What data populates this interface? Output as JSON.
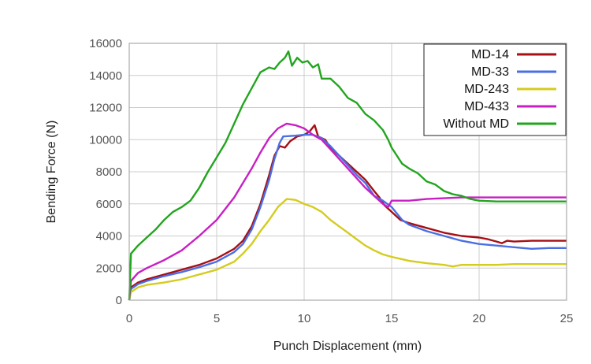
{
  "chart_data": {
    "type": "line",
    "title": "",
    "xlabel": "Punch Displacement (mm)",
    "ylabel": "Bending Force (N)",
    "xlim": [
      0,
      25
    ],
    "ylim": [
      0,
      16000
    ],
    "xticks": [
      0,
      5,
      10,
      15,
      20,
      25
    ],
    "yticks": [
      0,
      2000,
      4000,
      6000,
      8000,
      10000,
      12000,
      14000,
      16000
    ],
    "grid": true,
    "legend_position": "top-right",
    "series": [
      {
        "name": "MD-14",
        "color": "#a50f15",
        "points": [
          [
            0,
            0
          ],
          [
            0.1,
            800
          ],
          [
            0.5,
            1100
          ],
          [
            1,
            1300
          ],
          [
            2,
            1600
          ],
          [
            3,
            1900
          ],
          [
            4,
            2200
          ],
          [
            5,
            2600
          ],
          [
            6,
            3200
          ],
          [
            6.5,
            3700
          ],
          [
            7,
            4600
          ],
          [
            7.5,
            6000
          ],
          [
            8,
            7800
          ],
          [
            8.3,
            9000
          ],
          [
            8.6,
            9600
          ],
          [
            8.9,
            9500
          ],
          [
            9.2,
            9900
          ],
          [
            9.6,
            10200
          ],
          [
            10,
            10300
          ],
          [
            10.3,
            10500
          ],
          [
            10.6,
            10900
          ],
          [
            10.8,
            10200
          ],
          [
            11.2,
            10000
          ],
          [
            11.5,
            9500
          ],
          [
            12,
            9000
          ],
          [
            12.5,
            8500
          ],
          [
            13,
            8000
          ],
          [
            13.5,
            7500
          ],
          [
            14,
            6800
          ],
          [
            14.3,
            6400
          ],
          [
            14.6,
            5900
          ],
          [
            15,
            5500
          ],
          [
            15.5,
            5000
          ],
          [
            16,
            4800
          ],
          [
            17,
            4500
          ],
          [
            18,
            4200
          ],
          [
            19,
            4000
          ],
          [
            20,
            3900
          ],
          [
            20.5,
            3800
          ],
          [
            21,
            3650
          ],
          [
            21.3,
            3550
          ],
          [
            21.6,
            3700
          ],
          [
            22,
            3650
          ],
          [
            23,
            3700
          ],
          [
            24,
            3700
          ],
          [
            25,
            3700
          ]
        ]
      },
      {
        "name": "MD-33",
        "color": "#4a6fe3",
        "points": [
          [
            0,
            0
          ],
          [
            0.1,
            700
          ],
          [
            0.5,
            1000
          ],
          [
            1,
            1200
          ],
          [
            2,
            1500
          ],
          [
            3,
            1750
          ],
          [
            4,
            2050
          ],
          [
            5,
            2400
          ],
          [
            6,
            3000
          ],
          [
            6.5,
            3500
          ],
          [
            7,
            4400
          ],
          [
            7.5,
            5800
          ],
          [
            8,
            7500
          ],
          [
            8.3,
            8800
          ],
          [
            8.6,
            9800
          ],
          [
            8.8,
            10200
          ],
          [
            9.5,
            10250
          ],
          [
            10,
            10300
          ],
          [
            10.5,
            10300
          ],
          [
            11,
            10100
          ],
          [
            11.5,
            9600
          ],
          [
            12,
            9000
          ],
          [
            12.5,
            8400
          ],
          [
            13,
            7800
          ],
          [
            13.5,
            7300
          ],
          [
            14,
            6500
          ],
          [
            14.5,
            6200
          ],
          [
            15,
            5800
          ],
          [
            15.3,
            5400
          ],
          [
            15.6,
            5000
          ],
          [
            16,
            4700
          ],
          [
            17,
            4300
          ],
          [
            18,
            4000
          ],
          [
            19,
            3700
          ],
          [
            20,
            3500
          ],
          [
            21,
            3400
          ],
          [
            22,
            3300
          ],
          [
            23,
            3200
          ],
          [
            24,
            3250
          ],
          [
            25,
            3250
          ]
        ]
      },
      {
        "name": "MD-243",
        "color": "#d4cc1f",
        "points": [
          [
            0,
            0
          ],
          [
            0.1,
            500
          ],
          [
            0.5,
            800
          ],
          [
            1,
            950
          ],
          [
            2,
            1100
          ],
          [
            3,
            1300
          ],
          [
            4,
            1600
          ],
          [
            5,
            1900
          ],
          [
            6,
            2400
          ],
          [
            6.5,
            2900
          ],
          [
            7,
            3500
          ],
          [
            7.5,
            4300
          ],
          [
            8,
            5000
          ],
          [
            8.5,
            5800
          ],
          [
            9,
            6300
          ],
          [
            9.5,
            6250
          ],
          [
            10,
            6000
          ],
          [
            10.5,
            5800
          ],
          [
            11,
            5500
          ],
          [
            11.5,
            5000
          ],
          [
            12,
            4600
          ],
          [
            12.5,
            4200
          ],
          [
            13,
            3800
          ],
          [
            13.5,
            3400
          ],
          [
            14,
            3100
          ],
          [
            14.5,
            2850
          ],
          [
            15,
            2700
          ],
          [
            16,
            2450
          ],
          [
            17,
            2300
          ],
          [
            18,
            2200
          ],
          [
            18.5,
            2100
          ],
          [
            19,
            2200
          ],
          [
            20,
            2200
          ],
          [
            21,
            2200
          ],
          [
            22,
            2250
          ],
          [
            23,
            2250
          ],
          [
            24,
            2250
          ],
          [
            25,
            2250
          ]
        ]
      },
      {
        "name": "MD-433",
        "color": "#c81fc4",
        "points": [
          [
            0,
            0
          ],
          [
            0.1,
            1200
          ],
          [
            0.5,
            1700
          ],
          [
            1,
            2000
          ],
          [
            2,
            2500
          ],
          [
            2.5,
            2800
          ],
          [
            3,
            3100
          ],
          [
            4,
            4000
          ],
          [
            5,
            5000
          ],
          [
            6,
            6400
          ],
          [
            7,
            8200
          ],
          [
            7.5,
            9200
          ],
          [
            8,
            10100
          ],
          [
            8.5,
            10700
          ],
          [
            9,
            11000
          ],
          [
            9.5,
            10900
          ],
          [
            10,
            10700
          ],
          [
            10.5,
            10300
          ],
          [
            11,
            10000
          ],
          [
            11.5,
            9400
          ],
          [
            12,
            8800
          ],
          [
            12.5,
            8200
          ],
          [
            13,
            7600
          ],
          [
            13.5,
            7000
          ],
          [
            14,
            6500
          ],
          [
            14.5,
            6000
          ],
          [
            14.8,
            5800
          ],
          [
            15,
            6200
          ],
          [
            16,
            6200
          ],
          [
            17,
            6300
          ],
          [
            18,
            6350
          ],
          [
            19,
            6400
          ],
          [
            20,
            6400
          ],
          [
            21,
            6400
          ],
          [
            22,
            6400
          ],
          [
            23,
            6400
          ],
          [
            24,
            6400
          ],
          [
            25,
            6400
          ]
        ]
      },
      {
        "name": "Without MD",
        "color": "#22a51e",
        "points": [
          [
            0,
            0
          ],
          [
            0.1,
            2900
          ],
          [
            0.5,
            3400
          ],
          [
            1,
            3900
          ],
          [
            1.5,
            4400
          ],
          [
            2,
            5000
          ],
          [
            2.5,
            5500
          ],
          [
            3,
            5800
          ],
          [
            3.5,
            6200
          ],
          [
            4,
            7000
          ],
          [
            4.5,
            8000
          ],
          [
            5,
            8900
          ],
          [
            5.5,
            9800
          ],
          [
            6,
            11000
          ],
          [
            6.5,
            12200
          ],
          [
            7,
            13200
          ],
          [
            7.5,
            14200
          ],
          [
            8,
            14500
          ],
          [
            8.3,
            14400
          ],
          [
            8.6,
            14800
          ],
          [
            8.9,
            15100
          ],
          [
            9.1,
            15500
          ],
          [
            9.3,
            14600
          ],
          [
            9.6,
            15100
          ],
          [
            9.9,
            14800
          ],
          [
            10.2,
            14900
          ],
          [
            10.5,
            14500
          ],
          [
            10.8,
            14700
          ],
          [
            11,
            13800
          ],
          [
            11.5,
            13800
          ],
          [
            12,
            13300
          ],
          [
            12.5,
            12600
          ],
          [
            13,
            12300
          ],
          [
            13.5,
            11600
          ],
          [
            14,
            11200
          ],
          [
            14.5,
            10600
          ],
          [
            14.8,
            10000
          ],
          [
            15,
            9500
          ],
          [
            15.3,
            9000
          ],
          [
            15.6,
            8500
          ],
          [
            16,
            8200
          ],
          [
            16.5,
            7900
          ],
          [
            17,
            7400
          ],
          [
            17.5,
            7200
          ],
          [
            18,
            6800
          ],
          [
            18.5,
            6600
          ],
          [
            19,
            6500
          ],
          [
            19.5,
            6300
          ],
          [
            20,
            6200
          ],
          [
            21,
            6150
          ],
          [
            22,
            6150
          ],
          [
            23,
            6150
          ],
          [
            24,
            6150
          ],
          [
            25,
            6150
          ]
        ]
      }
    ]
  }
}
